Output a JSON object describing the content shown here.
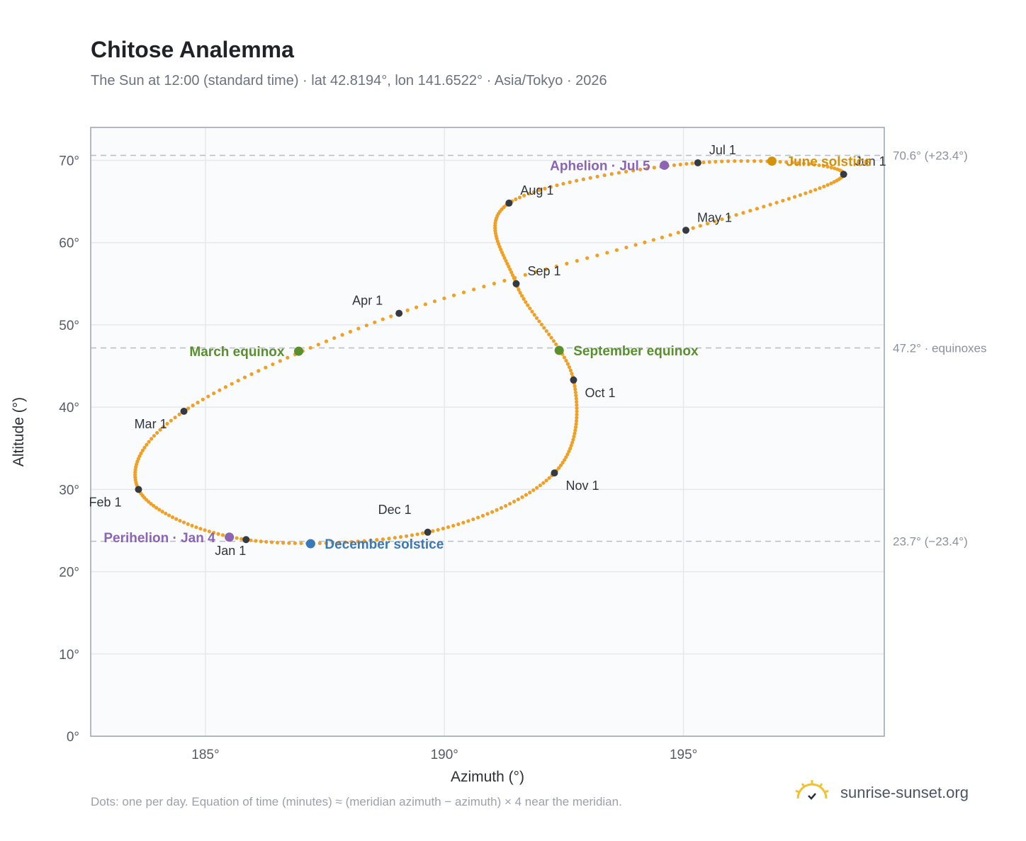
{
  "title": "Chitose Analemma",
  "subtitle": "The Sun at 12:00 (standard time) · lat 42.8194°, lon 141.6522° · Asia/Tokyo · 2026",
  "footnote": "Dots: one per day. Equation of time (minutes) ≈ (meridian azimuth − azimuth) × 4 near the meridian.",
  "brand": {
    "name": "sunrise-sunset.org",
    "icon": "sun-logo-icon"
  },
  "colors": {
    "curve": "#f0a024",
    "month_dot": "#343a40",
    "equinox": "#5a8f2e",
    "june_solstice": "#d4920b",
    "december_solstice": "#3a78b8",
    "apsis": "#8b64b4",
    "plot_bg": "#f9fbfd",
    "grid": "#e5e9ee",
    "axis": "#9aa3b0",
    "ref_line": "#b9bec6",
    "ref_text": "#8a919c"
  },
  "chart_data": {
    "type": "scatter",
    "xlabel": "Azimuth (°)",
    "ylabel": "Altitude (°)",
    "xlim": [
      182.6,
      199.2
    ],
    "ylim": [
      0,
      74
    ],
    "x_ticks": [
      185,
      190,
      195
    ],
    "x_tick_labels": [
      "185°",
      "190°",
      "195°"
    ],
    "y_ticks": [
      0,
      10,
      20,
      30,
      40,
      50,
      60,
      70
    ],
    "y_tick_labels": [
      "0°",
      "10°",
      "20°",
      "30°",
      "40°",
      "50°",
      "60°",
      "70°"
    ],
    "grid": true,
    "legend": "none",
    "reference_lines": [
      {
        "y": 70.6,
        "label": "70.6° (+23.4°)"
      },
      {
        "y": 47.2,
        "label": "47.2° · equinoxes"
      },
      {
        "y": 23.7,
        "label": "23.7° (−23.4°)"
      }
    ],
    "monthly_points": [
      {
        "label": "Jan 1",
        "x": 185.85,
        "y": 23.9
      },
      {
        "label": "Feb 1",
        "x": 183.6,
        "y": 30.0
      },
      {
        "label": "Mar 1",
        "x": 184.55,
        "y": 39.5
      },
      {
        "label": "Apr 1",
        "x": 189.05,
        "y": 51.4
      },
      {
        "label": "May 1",
        "x": 195.05,
        "y": 61.5
      },
      {
        "label": "Jun 1",
        "x": 198.35,
        "y": 68.3
      },
      {
        "label": "Jul 1",
        "x": 195.3,
        "y": 69.7
      },
      {
        "label": "Aug 1",
        "x": 191.35,
        "y": 64.8
      },
      {
        "label": "Sep 1",
        "x": 191.5,
        "y": 55.0
      },
      {
        "label": "Oct 1",
        "x": 192.7,
        "y": 43.3
      },
      {
        "label": "Nov 1",
        "x": 192.3,
        "y": 32.0
      },
      {
        "label": "Dec 1",
        "x": 189.65,
        "y": 24.8
      }
    ],
    "events": [
      {
        "label": "Perihelion · Jan 4",
        "x": 185.5,
        "y": 24.2,
        "kind": "apsis"
      },
      {
        "label": "March equinox",
        "x": 186.95,
        "y": 46.8,
        "kind": "equinox"
      },
      {
        "label": "June solstice",
        "x": 196.85,
        "y": 69.9,
        "kind": "june_solstice"
      },
      {
        "label": "Aphelion · Jul 5",
        "x": 194.6,
        "y": 69.4,
        "kind": "apsis"
      },
      {
        "label": "September equinox",
        "x": 192.4,
        "y": 46.9,
        "kind": "equinox"
      },
      {
        "label": "December solstice",
        "x": 187.2,
        "y": 23.4,
        "kind": "december_solstice"
      }
    ]
  }
}
